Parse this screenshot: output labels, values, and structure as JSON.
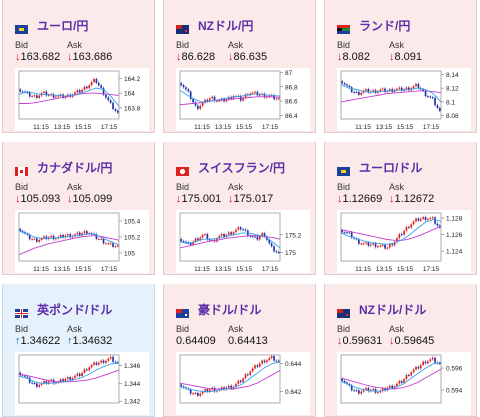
{
  "labels": {
    "bid": "Bid",
    "ask": "Ask"
  },
  "colors": {
    "down": "#dd1111",
    "up": "#1a5fd1",
    "card_normal": "#fbeaea",
    "card_selected": "#e6f2fb",
    "title": "#5b2ea8",
    "ma1": "#3aa0e8",
    "ma2": "#c33ed0",
    "candle_up": "#e02020",
    "candle_down": "#1a2fa8"
  },
  "cards": [
    {
      "title": "ユーロ/円",
      "flag": "eu-flag-icon",
      "bid": "163.682",
      "ask": "163.686",
      "dir": "down",
      "selected": false,
      "chart_data": {
        "type": "candlestick",
        "x_ticks": [
          "11:15",
          "13:15",
          "15:15",
          "17:15"
        ],
        "y_ticks": [
          "164.2",
          "164",
          "163.8"
        ],
        "ylim": [
          163.65,
          164.3
        ],
        "ma_fast": [
          163.98,
          164.02,
          164.0,
          163.98,
          163.98,
          163.97,
          163.96,
          163.97,
          164.0,
          164.03,
          164.07,
          164.05,
          163.95,
          163.82
        ],
        "ma_slow": [
          163.86,
          163.86,
          163.87,
          163.89,
          163.91,
          163.93,
          163.95,
          163.97,
          163.99,
          164.0,
          164.0,
          163.99,
          163.98,
          163.97
        ],
        "close": [
          164.05,
          163.98,
          163.95,
          164.0,
          163.97,
          163.96,
          163.95,
          163.99,
          164.03,
          164.1,
          164.18,
          164.02,
          163.85,
          163.72
        ]
      }
    },
    {
      "title": "NZドル/円",
      "flag": "nz-flag-icon",
      "bid": "86.628",
      "ask": "86.635",
      "dir": "down",
      "selected": false,
      "chart_data": {
        "type": "candlestick",
        "x_ticks": [
          "11:15",
          "13:15",
          "15:15",
          "17:15"
        ],
        "y_ticks": [
          "87",
          "86.8",
          "86.6",
          "86.4"
        ],
        "ylim": [
          86.35,
          87.02
        ],
        "ma_fast": [
          86.75,
          86.68,
          86.62,
          86.58,
          86.6,
          86.62,
          86.64,
          86.66,
          86.67,
          86.69,
          86.7,
          86.69,
          86.68,
          86.67
        ],
        "ma_slow": [
          86.55,
          86.56,
          86.57,
          86.58,
          86.6,
          86.61,
          86.62,
          86.63,
          86.64,
          86.65,
          86.66,
          86.66,
          86.66,
          86.65
        ],
        "close": [
          86.85,
          86.7,
          86.5,
          86.58,
          86.65,
          86.6,
          86.62,
          86.68,
          86.62,
          86.72,
          86.7,
          86.68,
          86.66,
          86.62
        ]
      }
    },
    {
      "title": "ランド/円",
      "flag": "za-flag-icon",
      "bid": "8.082",
      "ask": "8.091",
      "dir": "down",
      "selected": false,
      "chart_data": {
        "type": "candlestick",
        "x_ticks": [
          "11:15",
          "13:15",
          "15:15",
          "17:15"
        ],
        "y_ticks": [
          "8.14",
          "8.12",
          "8.1",
          "8.08"
        ],
        "ylim": [
          8.075,
          8.145
        ],
        "ma_fast": [
          8.125,
          8.12,
          8.118,
          8.115,
          8.114,
          8.115,
          8.116,
          8.117,
          8.117,
          8.118,
          8.12,
          8.118,
          8.112,
          8.1
        ],
        "ma_slow": [
          8.1,
          8.102,
          8.104,
          8.106,
          8.108,
          8.11,
          8.112,
          8.113,
          8.114,
          8.115,
          8.116,
          8.116,
          8.115,
          8.113
        ],
        "close": [
          8.13,
          8.118,
          8.112,
          8.116,
          8.115,
          8.117,
          8.116,
          8.118,
          8.118,
          8.12,
          8.124,
          8.112,
          8.104,
          8.085
        ]
      }
    },
    {
      "title": "カナダドル/円",
      "flag": "ca-flag-icon",
      "bid": "105.093",
      "ask": "105.099",
      "dir": "down",
      "selected": false,
      "chart_data": {
        "type": "candlestick",
        "x_ticks": [
          "11:15",
          "13:15",
          "15:15",
          "17:15"
        ],
        "y_ticks": [
          "105.4",
          "105.2",
          "105"
        ],
        "ylim": [
          104.9,
          105.5
        ],
        "ma_fast": [
          105.28,
          105.24,
          105.2,
          105.18,
          105.18,
          105.19,
          105.2,
          105.21,
          105.22,
          105.24,
          105.23,
          105.18,
          105.14,
          105.1
        ],
        "ma_slow": [
          104.98,
          105.02,
          105.06,
          105.09,
          105.12,
          105.14,
          105.16,
          105.18,
          105.2,
          105.21,
          105.22,
          105.2,
          105.18,
          105.16
        ],
        "close": [
          105.3,
          105.2,
          105.16,
          105.18,
          105.2,
          105.19,
          105.22,
          105.22,
          105.24,
          105.27,
          105.2,
          105.15,
          105.1,
          105.08
        ]
      }
    },
    {
      "title": "スイスフラン/円",
      "flag": "ch-flag-icon",
      "bid": "175.001",
      "ask": "175.017",
      "dir": "down",
      "selected": false,
      "chart_data": {
        "type": "candlestick",
        "x_ticks": [
          "11:15",
          "13:15",
          "15:15",
          "17:15"
        ],
        "y_ticks": [
          "175.2",
          "175"
        ],
        "ylim": [
          174.9,
          175.45
        ],
        "ma_fast": [
          175.12,
          175.1,
          175.12,
          175.15,
          175.15,
          175.16,
          175.18,
          175.2,
          175.22,
          175.22,
          175.2,
          175.18,
          175.12,
          175.05
        ],
        "ma_slow": [
          175.05,
          175.07,
          175.09,
          175.11,
          175.13,
          175.14,
          175.16,
          175.17,
          175.18,
          175.19,
          175.19,
          175.18,
          175.17,
          175.15
        ],
        "close": [
          175.15,
          175.08,
          175.15,
          175.2,
          175.12,
          175.18,
          175.2,
          175.24,
          175.28,
          175.2,
          175.15,
          175.22,
          175.05,
          174.98
        ]
      }
    },
    {
      "title": "ユーロ/ドル",
      "flag": "eu-us-flag-icon",
      "bid": "1.12669",
      "ask": "1.12672",
      "dir": "down",
      "selected": false,
      "chart_data": {
        "type": "candlestick",
        "x_ticks": [
          "11:15",
          "13:15",
          "15:15",
          "17:15"
        ],
        "y_ticks": [
          "1.128",
          "1.126",
          "1.124"
        ],
        "ylim": [
          1.1228,
          1.1286
        ],
        "ma_fast": [
          1.1262,
          1.1258,
          1.1255,
          1.1252,
          1.125,
          1.1249,
          1.1248,
          1.125,
          1.1254,
          1.126,
          1.1268,
          1.1275,
          1.1278,
          1.1276
        ],
        "ma_slow": [
          1.1266,
          1.1264,
          1.1262,
          1.126,
          1.1258,
          1.1256,
          1.1254,
          1.1253,
          1.1253,
          1.1255,
          1.1258,
          1.1262,
          1.1266,
          1.127
        ],
        "close": [
          1.1265,
          1.126,
          1.1252,
          1.1248,
          1.1248,
          1.1246,
          1.1244,
          1.1252,
          1.1262,
          1.1272,
          1.1278,
          1.128,
          1.1279,
          1.1267
        ]
      }
    },
    {
      "title": "英ポンド/ドル",
      "flag": "gb-us-flag-icon",
      "bid": "1.34622",
      "ask": "1.34632",
      "dir": "up",
      "selected": true,
      "chart_data": {
        "type": "candlestick",
        "x_ticks": [],
        "y_ticks": [
          "1.346",
          "1.344",
          "1.342"
        ],
        "ylim": [
          1.3418,
          1.3472
        ],
        "ma_fast": [
          1.3448,
          1.3446,
          1.3442,
          1.344,
          1.344,
          1.3441,
          1.3442,
          1.3444,
          1.3446,
          1.345,
          1.3455,
          1.3459,
          1.3462,
          1.3463
        ],
        "ma_slow": [
          1.345,
          1.3449,
          1.3447,
          1.3445,
          1.3443,
          1.3442,
          1.3442,
          1.3442,
          1.3443,
          1.3444,
          1.3446,
          1.3449,
          1.3452,
          1.3455
        ],
        "close": [
          1.3452,
          1.3444,
          1.3438,
          1.344,
          1.3443,
          1.3441,
          1.3445,
          1.3447,
          1.345,
          1.3458,
          1.3462,
          1.3465,
          1.3468,
          1.3462
        ]
      }
    },
    {
      "title": "豪ドル/ドル",
      "flag": "au-us-flag-icon",
      "bid": "0.64409",
      "ask": "0.64413",
      "dir": "none",
      "selected": false,
      "chart_data": {
        "type": "candlestick",
        "x_ticks": [],
        "y_ticks": [
          "0.644",
          "0.642"
        ],
        "ylim": [
          0.6412,
          0.6446
        ],
        "ma_fast": [
          0.6424,
          0.6422,
          0.6421,
          0.642,
          0.642,
          0.6421,
          0.6422,
          0.6423,
          0.6425,
          0.6429,
          0.6433,
          0.6437,
          0.644,
          0.6441
        ],
        "ma_slow": [
          0.6426,
          0.6425,
          0.6424,
          0.6423,
          0.6422,
          0.6422,
          0.6422,
          0.6422,
          0.6423,
          0.6424,
          0.6426,
          0.6429,
          0.6432,
          0.6435
        ],
        "close": [
          0.6425,
          0.642,
          0.6418,
          0.642,
          0.6422,
          0.6421,
          0.6423,
          0.6424,
          0.6428,
          0.6434,
          0.6438,
          0.6442,
          0.6444,
          0.6441
        ]
      }
    },
    {
      "title": "NZドル/ドル",
      "flag": "nz-us-flag-icon",
      "bid": "0.59631",
      "ask": "0.59645",
      "dir": "down",
      "selected": false,
      "chart_data": {
        "type": "candlestick",
        "x_ticks": [],
        "y_ticks": [
          "0.596",
          "0.594"
        ],
        "ylim": [
          0.5928,
          0.5972
        ],
        "ma_fast": [
          0.5948,
          0.5945,
          0.5942,
          0.594,
          0.5939,
          0.5939,
          0.594,
          0.5942,
          0.5945,
          0.595,
          0.5955,
          0.596,
          0.5964,
          0.5965
        ],
        "ma_slow": [
          0.5951,
          0.5949,
          0.5947,
          0.5945,
          0.5943,
          0.5942,
          0.5941,
          0.5941,
          0.5942,
          0.5944,
          0.5947,
          0.5951,
          0.5955,
          0.5959
        ],
        "close": [
          0.595,
          0.5942,
          0.5938,
          0.594,
          0.594,
          0.5938,
          0.5942,
          0.5944,
          0.5948,
          0.5956,
          0.596,
          0.5966,
          0.5968,
          0.5963
        ]
      }
    }
  ]
}
